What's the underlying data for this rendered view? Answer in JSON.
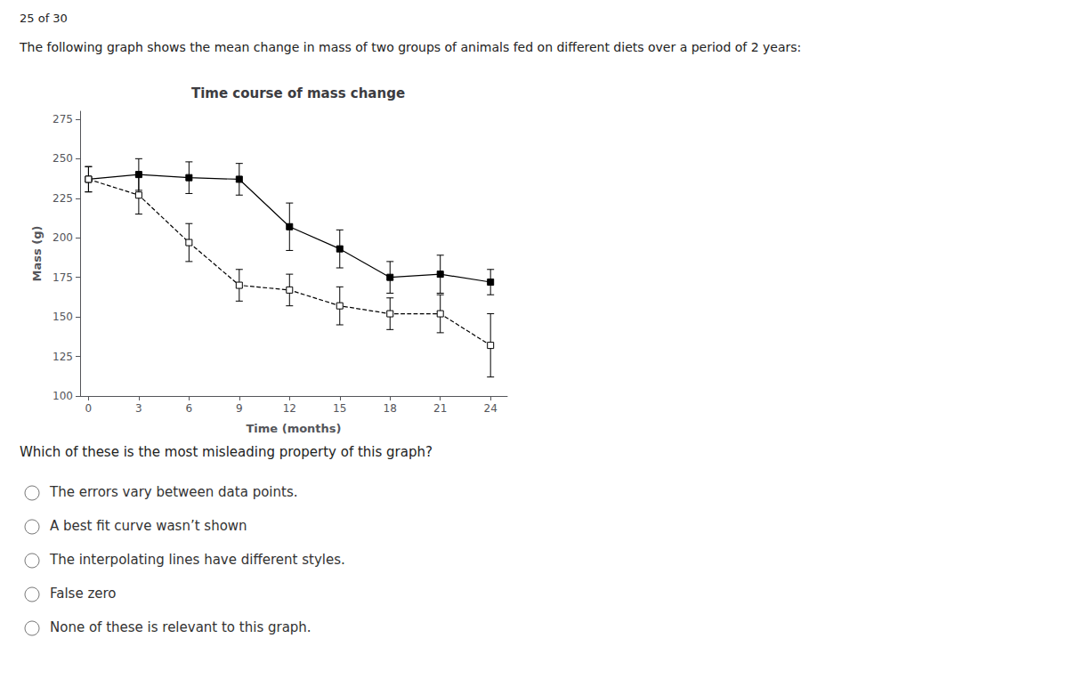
{
  "chart_data": {
    "type": "line",
    "title": "Time course of mass change",
    "x_label": "Time (months)",
    "y_label": "Mass (g)",
    "x": [
      0,
      3,
      6,
      9,
      12,
      15,
      18,
      21,
      24
    ],
    "series": [
      {
        "values": [
          237,
          240,
          238,
          237,
          207,
          193,
          175,
          177,
          172
        ],
        "yerr": [
          8,
          10,
          10,
          10,
          15,
          12,
          10,
          12,
          8
        ],
        "color": "#000000",
        "marker": "filled_square",
        "line_style": "solid"
      },
      {
        "values": [
          237,
          227,
          197,
          170,
          167,
          157,
          152,
          152,
          132
        ],
        "yerr": [
          8,
          12,
          12,
          10,
          10,
          12,
          10,
          12,
          20
        ],
        "color": "#000000",
        "marker": "open_square",
        "line_style": "dashed"
      }
    ],
    "xlim": [
      -0.5,
      25
    ],
    "xticks": [
      0,
      3,
      6,
      9,
      12,
      15,
      18,
      21,
      24
    ],
    "ylim": [
      100,
      280
    ],
    "yticks": [
      100,
      125,
      150,
      175,
      200,
      225,
      250,
      275
    ],
    "grid": false,
    "page_label": "25 of 30",
    "question_text": "The following graph shows the mean change in mass of two groups of animals fed on different diets over a period of 2 years:",
    "question": "Which of these is the most misleading property of this graph?",
    "options": [
      "The errors vary between data points.",
      "A best fit curve wasn’t shown",
      "The interpolating lines have different styles.",
      "False zero",
      "None of these is relevant to this graph."
    ]
  }
}
